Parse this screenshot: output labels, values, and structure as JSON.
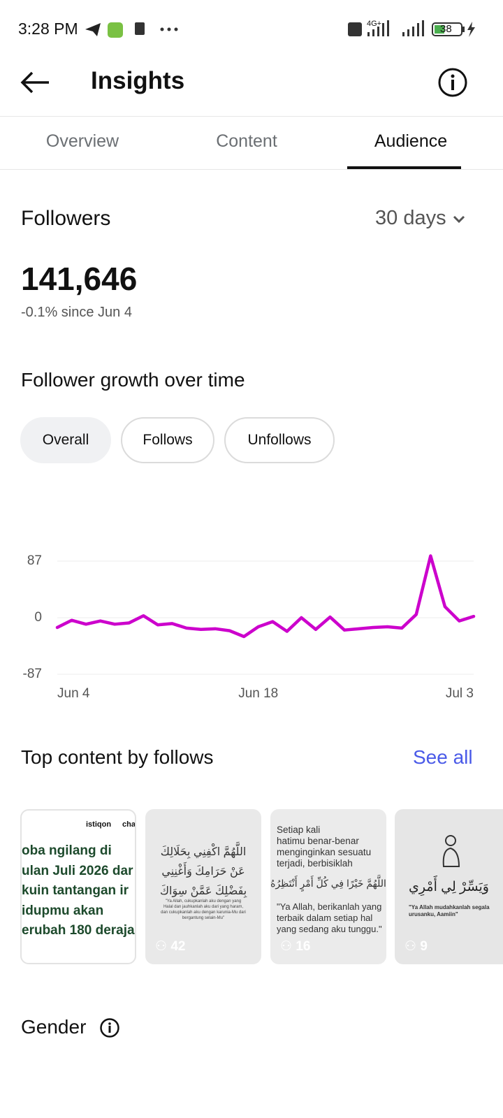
{
  "status_bar": {
    "time": "3:28 PM",
    "network": "4G+",
    "battery": "38"
  },
  "header": {
    "title": "Insights"
  },
  "tabs": [
    {
      "label": "Overview",
      "active": false
    },
    {
      "label": "Content",
      "active": false
    },
    {
      "label": "Audience",
      "active": true
    }
  ],
  "followers": {
    "title": "Followers",
    "period": "30 days",
    "count": "141,646",
    "change": "-0.1% since Jun 4"
  },
  "growth": {
    "title": "Follower growth over time",
    "filters": [
      {
        "label": "Overall",
        "selected": true
      },
      {
        "label": "Follows",
        "selected": false
      },
      {
        "label": "Unfollows",
        "selected": false
      }
    ]
  },
  "chart_data": {
    "type": "line",
    "categories": [
      "Jun 4",
      null,
      null,
      null,
      null,
      null,
      null,
      null,
      null,
      null,
      null,
      null,
      null,
      null,
      "Jun 18",
      null,
      null,
      null,
      null,
      null,
      null,
      null,
      null,
      null,
      null,
      null,
      null,
      null,
      null,
      "Jul 3"
    ],
    "series": [
      {
        "name": "Overall",
        "color": "#cc00cc",
        "values": [
          -15,
          -4,
          -10,
          -5,
          -10,
          -8,
          3,
          -11,
          -9,
          -16,
          -18,
          -17,
          -20,
          -29,
          -14,
          -6,
          -21,
          0,
          -18,
          1,
          -19,
          -17,
          -15,
          -14,
          -16,
          5,
          95,
          17,
          -5,
          2
        ]
      }
    ],
    "ylim": [
      -87,
      87
    ],
    "yticks": [
      87,
      0,
      -87
    ],
    "grid": true
  },
  "top_content": {
    "title": "Top content by follows",
    "see_all": "See all",
    "items": [
      {
        "brand": [
          "istiqon",
          "chaj"
        ],
        "lines": [
          "oba ngilang di",
          "ulan Juli 2026 dar",
          "kuin tantangan ir",
          "idupmu akan",
          "erubah 180 deraja"
        ]
      },
      {
        "lines": [
          "اللَّهُمَّ اكْفِنِي بِحَلَالِكَ",
          "عَنْ حَرَامِكَ وَأَغْنِنِي",
          "بِفَضْلِكَ عَمَّنْ سِوَاكَ",
          "\"Ya Allah, cukupkanlah aku dengan yang Halal dan jauhkanlah aku dari yang haram, dan cukupkanlah aku dengan karunia-Mu dari bergantung selain-Mu\""
        ],
        "follows": "42"
      },
      {
        "lines": [
          "Setiap kali",
          "hatimu benar-benar",
          "menginginkan sesuatu",
          "terjadi, berbisiklah",
          "اللَّهُمَّ خَيْرًا فِي كُلِّ أَمْرٍ أَنْتَظِرُهُ",
          "\"Ya Allah, berikanlah yang terbaik dalam setiap hal yang sedang aku tunggu.\""
        ],
        "follows": "16"
      },
      {
        "lines": [
          "وَيَسِّرْ لِي أَمْرِي",
          "\"Ya Allah mudahkanlah segala urusanku, Aamiin\""
        ],
        "follows": "9"
      }
    ]
  },
  "gender": {
    "title": "Gender"
  }
}
